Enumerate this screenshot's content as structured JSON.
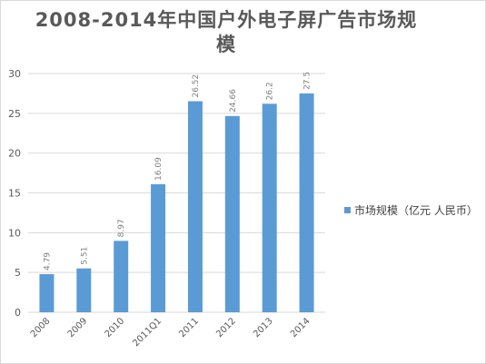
{
  "chart_data": {
    "type": "bar",
    "title": "2008-2014年中国户外电子屏广告市场规模",
    "categories": [
      "2008",
      "2009",
      "2010",
      "2011Q1",
      "2011",
      "2012",
      "2013",
      "2014"
    ],
    "series": [
      {
        "name": "市场规模（亿元 人民币）",
        "values": [
          4.79,
          5.51,
          8.97,
          16.09,
          26.52,
          24.66,
          26.2,
          27.5
        ],
        "labels": [
          "4.79",
          "5.51",
          "8.97",
          "16.09",
          "26.52",
          "24.66",
          "26.2",
          "27.5"
        ]
      }
    ],
    "ylim": [
      0,
      30
    ],
    "yticks": [
      "0",
      "5",
      "10",
      "15",
      "20",
      "25",
      "30"
    ],
    "grid": true,
    "legend": "right",
    "colors": {
      "bar": "#5b9bd5",
      "grid": "#d9d9d9",
      "axis_text": "#595959",
      "title": "#595959"
    }
  }
}
